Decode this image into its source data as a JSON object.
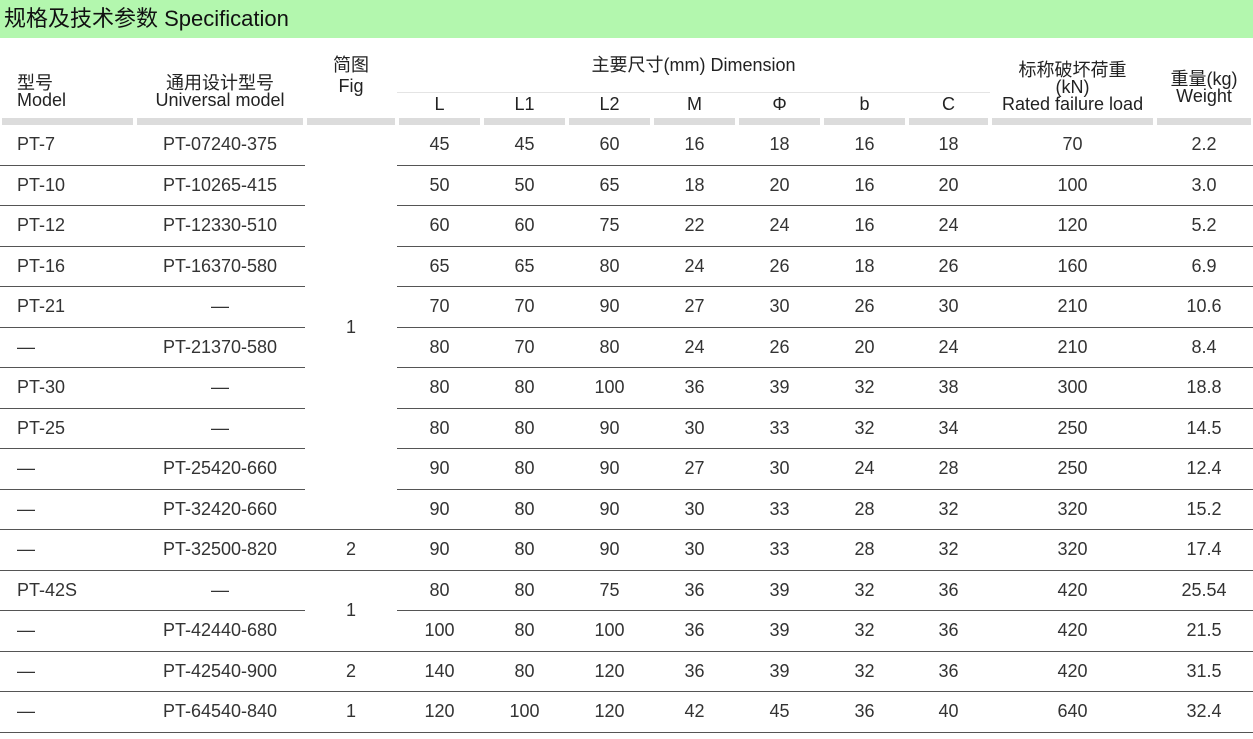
{
  "title": "规格及技术参数  Specification",
  "headers": {
    "model_cn": "型号",
    "model_en": "Model",
    "universal_cn": "通用设计型号",
    "universal_en": "Universal  model",
    "fig_cn": "简图",
    "fig_en": "Fig",
    "dimension": "主要尺寸(mm)  Dimension",
    "dims": [
      "L",
      "L1",
      "L2",
      "M",
      "Φ",
      "b",
      "C"
    ],
    "load_cn": "标称破坏荷重",
    "load_unit": "(kN)",
    "load_en": "Rated failure load",
    "weight_cn": "重量(kg)",
    "weight_en": "Weight"
  },
  "fig_groups": [
    {
      "value": "1",
      "rows": 10
    },
    {
      "value": "2",
      "rows": 1
    },
    {
      "value": "1",
      "rows": 2
    },
    {
      "value": "2",
      "rows": 1
    },
    {
      "value": "1",
      "rows": 1
    }
  ],
  "rows": [
    {
      "model": "PT-7",
      "universal": "PT-07240-375",
      "dims": [
        "45",
        "45",
        "60",
        "16",
        "18",
        "16",
        "18"
      ],
      "load": "70",
      "weight": "2.2"
    },
    {
      "model": "PT-10",
      "universal": "PT-10265-415",
      "dims": [
        "50",
        "50",
        "65",
        "18",
        "20",
        "16",
        "20"
      ],
      "load": "100",
      "weight": "3.0"
    },
    {
      "model": "PT-12",
      "universal": "PT-12330-510",
      "dims": [
        "60",
        "60",
        "75",
        "22",
        "24",
        "16",
        "24"
      ],
      "load": "120",
      "weight": "5.2"
    },
    {
      "model": "PT-16",
      "universal": "PT-16370-580",
      "dims": [
        "65",
        "65",
        "80",
        "24",
        "26",
        "18",
        "26"
      ],
      "load": "160",
      "weight": "6.9"
    },
    {
      "model": "PT-21",
      "universal": "—",
      "dims": [
        "70",
        "70",
        "90",
        "27",
        "30",
        "26",
        "30"
      ],
      "load": "210",
      "weight": "10.6"
    },
    {
      "model": "—",
      "universal": "PT-21370-580",
      "dims": [
        "80",
        "70",
        "80",
        "24",
        "26",
        "20",
        "24"
      ],
      "load": "210",
      "weight": "8.4"
    },
    {
      "model": "PT-30",
      "universal": "—",
      "dims": [
        "80",
        "80",
        "100",
        "36",
        "39",
        "32",
        "38"
      ],
      "load": "300",
      "weight": "18.8"
    },
    {
      "model": "PT-25",
      "universal": "—",
      "dims": [
        "80",
        "80",
        "90",
        "30",
        "33",
        "32",
        "34"
      ],
      "load": "250",
      "weight": "14.5"
    },
    {
      "model": "—",
      "universal": "PT-25420-660",
      "dims": [
        "90",
        "80",
        "90",
        "27",
        "30",
        "24",
        "28"
      ],
      "load": "250",
      "weight": "12.4"
    },
    {
      "model": "—",
      "universal": "PT-32420-660",
      "dims": [
        "90",
        "80",
        "90",
        "30",
        "33",
        "28",
        "32"
      ],
      "load": "320",
      "weight": "15.2"
    },
    {
      "model": "—",
      "universal": "PT-32500-820",
      "dims": [
        "90",
        "80",
        "90",
        "30",
        "33",
        "28",
        "32"
      ],
      "load": "320",
      "weight": "17.4"
    },
    {
      "model": "PT-42S",
      "universal": "—",
      "dims": [
        "80",
        "80",
        "75",
        "36",
        "39",
        "32",
        "36"
      ],
      "load": "420",
      "weight": "25.54"
    },
    {
      "model": "—",
      "universal": "PT-42440-680",
      "dims": [
        "100",
        "80",
        "100",
        "36",
        "39",
        "32",
        "36"
      ],
      "load": "420",
      "weight": "21.5"
    },
    {
      "model": "—",
      "universal": "PT-42540-900",
      "dims": [
        "140",
        "80",
        "120",
        "36",
        "39",
        "32",
        "36"
      ],
      "load": "420",
      "weight": "31.5"
    },
    {
      "model": "—",
      "universal": "PT-64540-840",
      "dims": [
        "120",
        "100",
        "120",
        "42",
        "45",
        "36",
        "40"
      ],
      "load": "640",
      "weight": "32.4"
    }
  ]
}
